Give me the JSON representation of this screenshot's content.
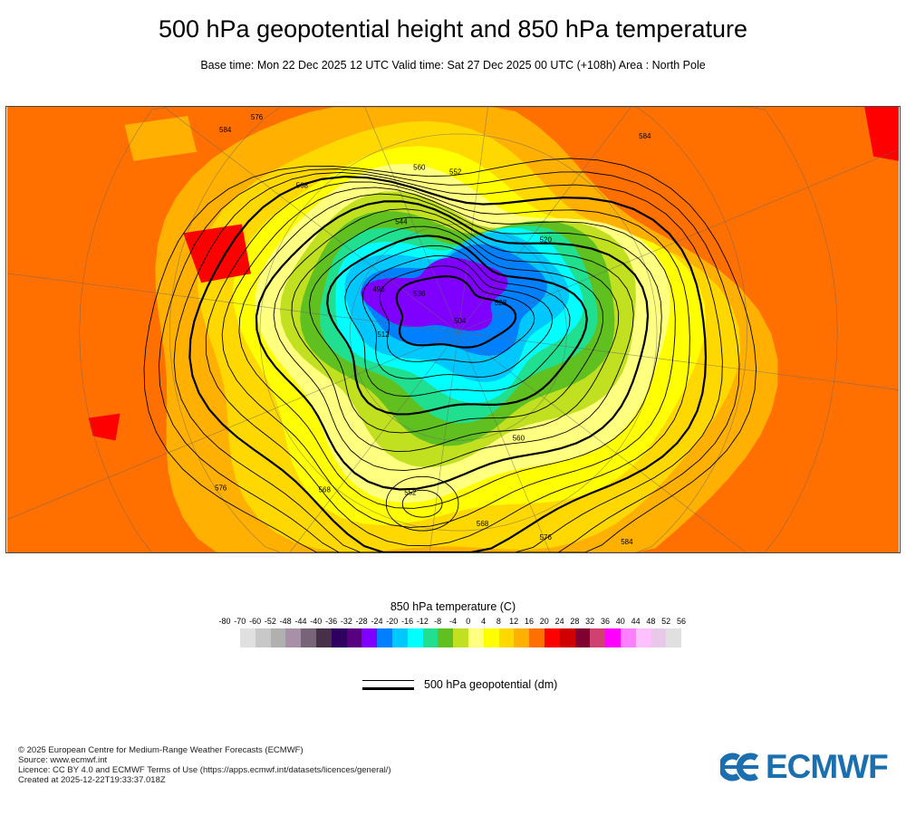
{
  "header": {
    "title": "500 hPa geopotential height and 850 hPa temperature",
    "subtitle": "Base time: Mon 22 Dec 2025 12 UTC Valid time: Sat 27 Dec 2025 00 UTC (+108h) Area : North Pole"
  },
  "map": {
    "contour_labels": [
      "584",
      "576",
      "568",
      "560",
      "552",
      "544",
      "536",
      "528",
      "520",
      "512",
      "504",
      "496",
      "568",
      "576",
      "584",
      "560",
      "552",
      "568",
      "576",
      "584"
    ]
  },
  "colorbar": {
    "title": "850 hPa temperature (C)",
    "labels": [
      "-80",
      "-70",
      "-60",
      "-52",
      "-48",
      "-44",
      "-40",
      "-36",
      "-32",
      "-28",
      "-24",
      "-20",
      "-16",
      "-12",
      "-8",
      "-4",
      "0",
      "4",
      "8",
      "12",
      "16",
      "20",
      "24",
      "28",
      "32",
      "36",
      "40",
      "44",
      "48",
      "52",
      "56"
    ],
    "colors": [
      "#e0e0e0",
      "#c8c8c8",
      "#b0b0b0",
      "#a890a8",
      "#786478",
      "#483048",
      "#300060",
      "#580080",
      "#8000ff",
      "#0080ff",
      "#00c8ff",
      "#00ffff",
      "#20e090",
      "#60c020",
      "#c0e020",
      "#ffff80",
      "#ffff00",
      "#ffd800",
      "#ffb000",
      "#ff7000",
      "#ff0000",
      "#d00000",
      "#800030",
      "#d04070",
      "#ff00ff",
      "#ff80ff",
      "#ffc0ff",
      "#e8c8e8",
      "#e0e0e0"
    ]
  },
  "legend": {
    "label": "500 hPa geopotential (dm)"
  },
  "footer": {
    "lines": [
      "© 2025 European Centre for Medium-Range Weather Forecasts (ECMWF)",
      "Source: www.ecmwf.int",
      "Licence: CC BY 4.0 and ECMWF Terms of Use (https://apps.ecmwf.int/datasets/licences/general/)",
      "Created at 2025-12-22T19:33:37.018Z"
    ],
    "logo_text": "ECMWF"
  }
}
